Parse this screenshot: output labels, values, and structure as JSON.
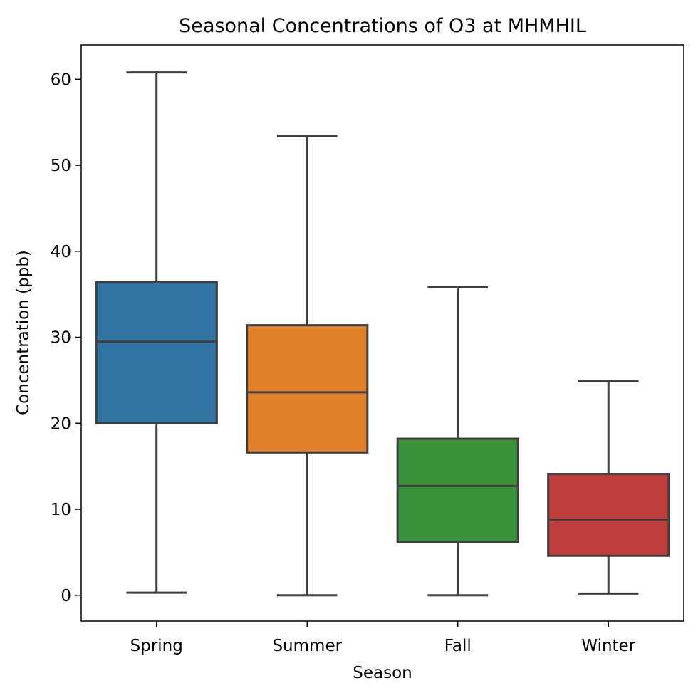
{
  "chart_data": {
    "type": "box",
    "title": "Seasonal Concentrations of O3 at MHMHIL",
    "xlabel": "Season",
    "ylabel": "Concentration (ppb)",
    "ylim": [
      -3,
      64
    ],
    "yticks": [
      0,
      10,
      20,
      30,
      40,
      50,
      60
    ],
    "grid": false,
    "categories": [
      "Spring",
      "Summer",
      "Fall",
      "Winter"
    ],
    "boxes": [
      {
        "category": "Spring",
        "whisker_low": 0.3,
        "q1": 20.0,
        "median": 29.5,
        "q3": 36.4,
        "whisker_high": 60.8,
        "color": "#3274a1"
      },
      {
        "category": "Summer",
        "whisker_low": 0.0,
        "q1": 16.6,
        "median": 23.6,
        "q3": 31.4,
        "whisker_high": 53.4,
        "color": "#e1812c"
      },
      {
        "category": "Fall",
        "whisker_low": 0.0,
        "q1": 6.2,
        "median": 12.7,
        "q3": 18.2,
        "whisker_high": 35.8,
        "color": "#3a923a"
      },
      {
        "category": "Winter",
        "whisker_low": 0.2,
        "q1": 4.6,
        "median": 8.8,
        "q3": 14.1,
        "whisker_high": 24.9,
        "color": "#c03d3e"
      }
    ]
  }
}
